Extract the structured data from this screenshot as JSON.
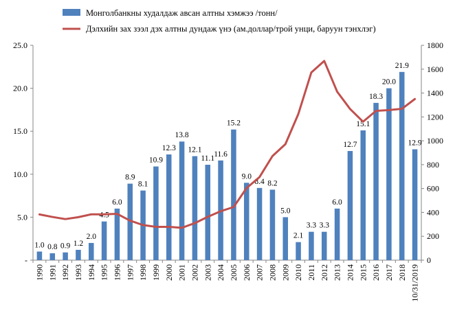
{
  "chart_data": {
    "type": "bar+line",
    "categories": [
      "1990",
      "1991",
      "1992",
      "1993",
      "1994",
      "1995",
      "1996",
      "1997",
      "1998",
      "1999",
      "2000",
      "2001",
      "2002",
      "2003",
      "2004",
      "2005",
      "2006",
      "2007",
      "2008",
      "2009",
      "2010",
      "2011",
      "2012",
      "2013",
      "2014",
      "2015",
      "2016",
      "2017",
      "2018",
      "10/31/2019"
    ],
    "series": [
      {
        "name": "Монголбанкны худалдаж  авсан алтны хэмжээ /тонн/",
        "type": "bar",
        "axis": "left",
        "color": "#4f81bd",
        "values": [
          1.0,
          0.8,
          0.9,
          1.2,
          2.0,
          4.5,
          6.0,
          8.9,
          8.1,
          10.9,
          12.3,
          13.8,
          12.1,
          11.1,
          11.6,
          15.2,
          9.0,
          8.4,
          8.2,
          5.0,
          2.1,
          3.3,
          3.3,
          6.0,
          12.7,
          15.1,
          18.3,
          20.0,
          21.9,
          12.9
        ],
        "labels": [
          "1.0",
          "0.8",
          "0.9",
          "1.2",
          "2.0",
          "4.5",
          "6.0",
          "8.9",
          "8.1",
          "10.9",
          "12.3",
          "13.8",
          "12.1",
          "11.1",
          "11.6",
          "15.2",
          "9.0",
          "8.4",
          "8.2",
          "5.0",
          "2.1",
          "3.3",
          "3.3",
          "6.0",
          "12.7",
          "15.1",
          "18.3",
          "20.0",
          "21.9",
          "12.9"
        ]
      },
      {
        "name": "Дэлхийн зах зээл дэх алтны дундаж үнэ (ам.доллар/трой унци, баруун тэнхлэг)",
        "type": "line",
        "axis": "right",
        "color": "#c0504d",
        "values": [
          383,
          362,
          344,
          360,
          384,
          384,
          388,
          331,
          294,
          279,
          279,
          271,
          310,
          363,
          410,
          445,
          604,
          696,
          872,
          972,
          1225,
          1572,
          1669,
          1411,
          1266,
          1160,
          1251,
          1257,
          1268,
          1350
        ]
      }
    ],
    "y_left": {
      "min": 0,
      "max": 25,
      "ticks": [
        "-",
        "5.0",
        "10.0",
        "15.0",
        "20.0",
        "25.0"
      ],
      "tick_values": [
        0,
        5,
        10,
        15,
        20,
        25
      ]
    },
    "y_right": {
      "min": 0,
      "max": 1800,
      "ticks": [
        "0",
        "200",
        "400",
        "600",
        "800",
        "1000",
        "1200",
        "1400",
        "1600",
        "1800"
      ],
      "tick_values": [
        0,
        200,
        400,
        600,
        800,
        1000,
        1200,
        1400,
        1600,
        1800
      ]
    },
    "legend_position": "top",
    "grid": false
  }
}
